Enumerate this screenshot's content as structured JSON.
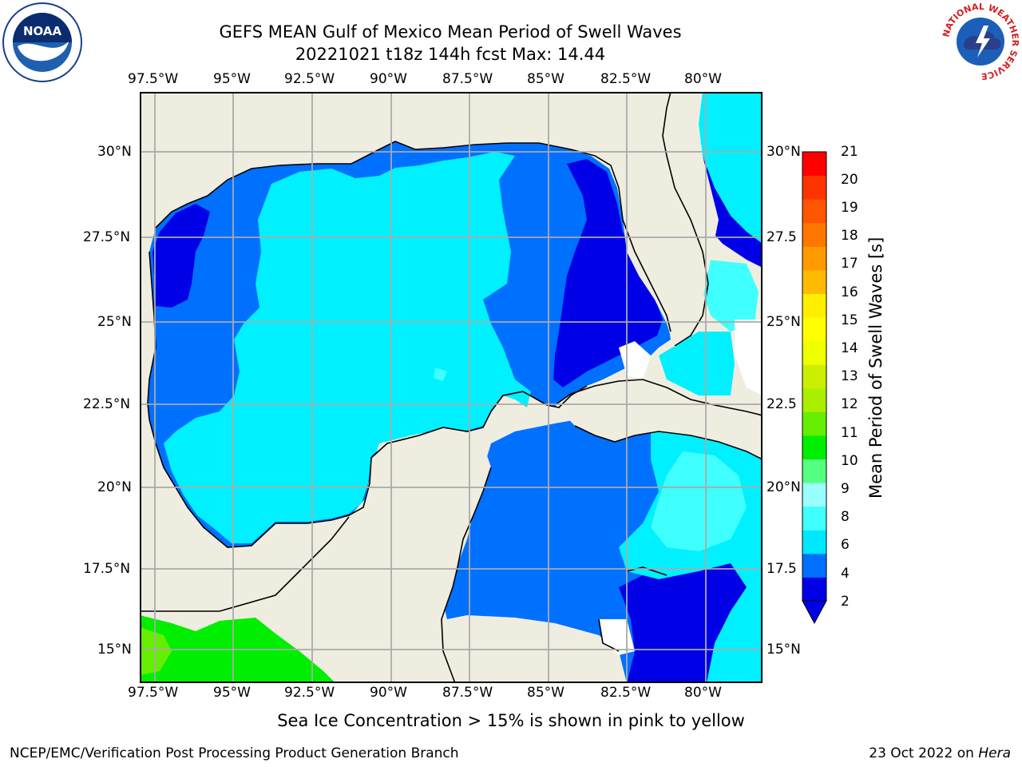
{
  "title": {
    "line1": "GEFS MEAN Gulf of Mexico Mean Period of Swell Waves",
    "line2": "20221021 t18z 144h fcst   Max: 14.44"
  },
  "axes": {
    "lon_ticks": [
      "97.5°W",
      "95°W",
      "92.5°W",
      "90°W",
      "87.5°W",
      "85°W",
      "82.5°W",
      "80°W"
    ],
    "lat_ticks_left": [
      "30°N",
      "27.5°N",
      "25°N",
      "22.5°N",
      "20°N",
      "17.5°N",
      "15°N"
    ],
    "lat_ticks_right": [
      "30°N",
      "27.5",
      "25°N",
      "22.5",
      "20°N",
      "17.5",
      "15°N"
    ]
  },
  "colorbar": {
    "label": "Mean Period of Swell Waves [s]",
    "ticks": [
      "21",
      "20",
      "19",
      "18",
      "17",
      "16",
      "15",
      "14",
      "13",
      "12",
      "11",
      "10",
      "9",
      "8",
      "6",
      "4",
      "2"
    ],
    "colors": [
      "#0000e6",
      "#0070ff",
      "#00e8ff",
      "#40ffff",
      "#99ffff",
      "#55ff80",
      "#00ee00",
      "#66ee00",
      "#aaee00",
      "#ccee00",
      "#eeff00",
      "#ffff00",
      "#ffee00",
      "#ffbb00",
      "#ff9900",
      "#ff7700",
      "#ff5500",
      "#ff3300",
      "#ff0000"
    ]
  },
  "colors": {
    "land": "#efede0",
    "deep": "#0000e6",
    "mid": "#0070ff",
    "light": "#00f0ff",
    "pale": "#40ffff",
    "green": "#00ee00",
    "grid": "#aaaaaa"
  },
  "caption": "Sea Ice Concentration > 15% is shown in pink to yellow",
  "footer": {
    "left": "NCEP/EMC/Verification Post Processing Product Generation Branch",
    "date": "23 Oct 2022 on ",
    "host": "Hera"
  },
  "logos": {
    "noaa": "NOAA",
    "nws_ring": "NATIONAL WEATHER SERVICE"
  }
}
